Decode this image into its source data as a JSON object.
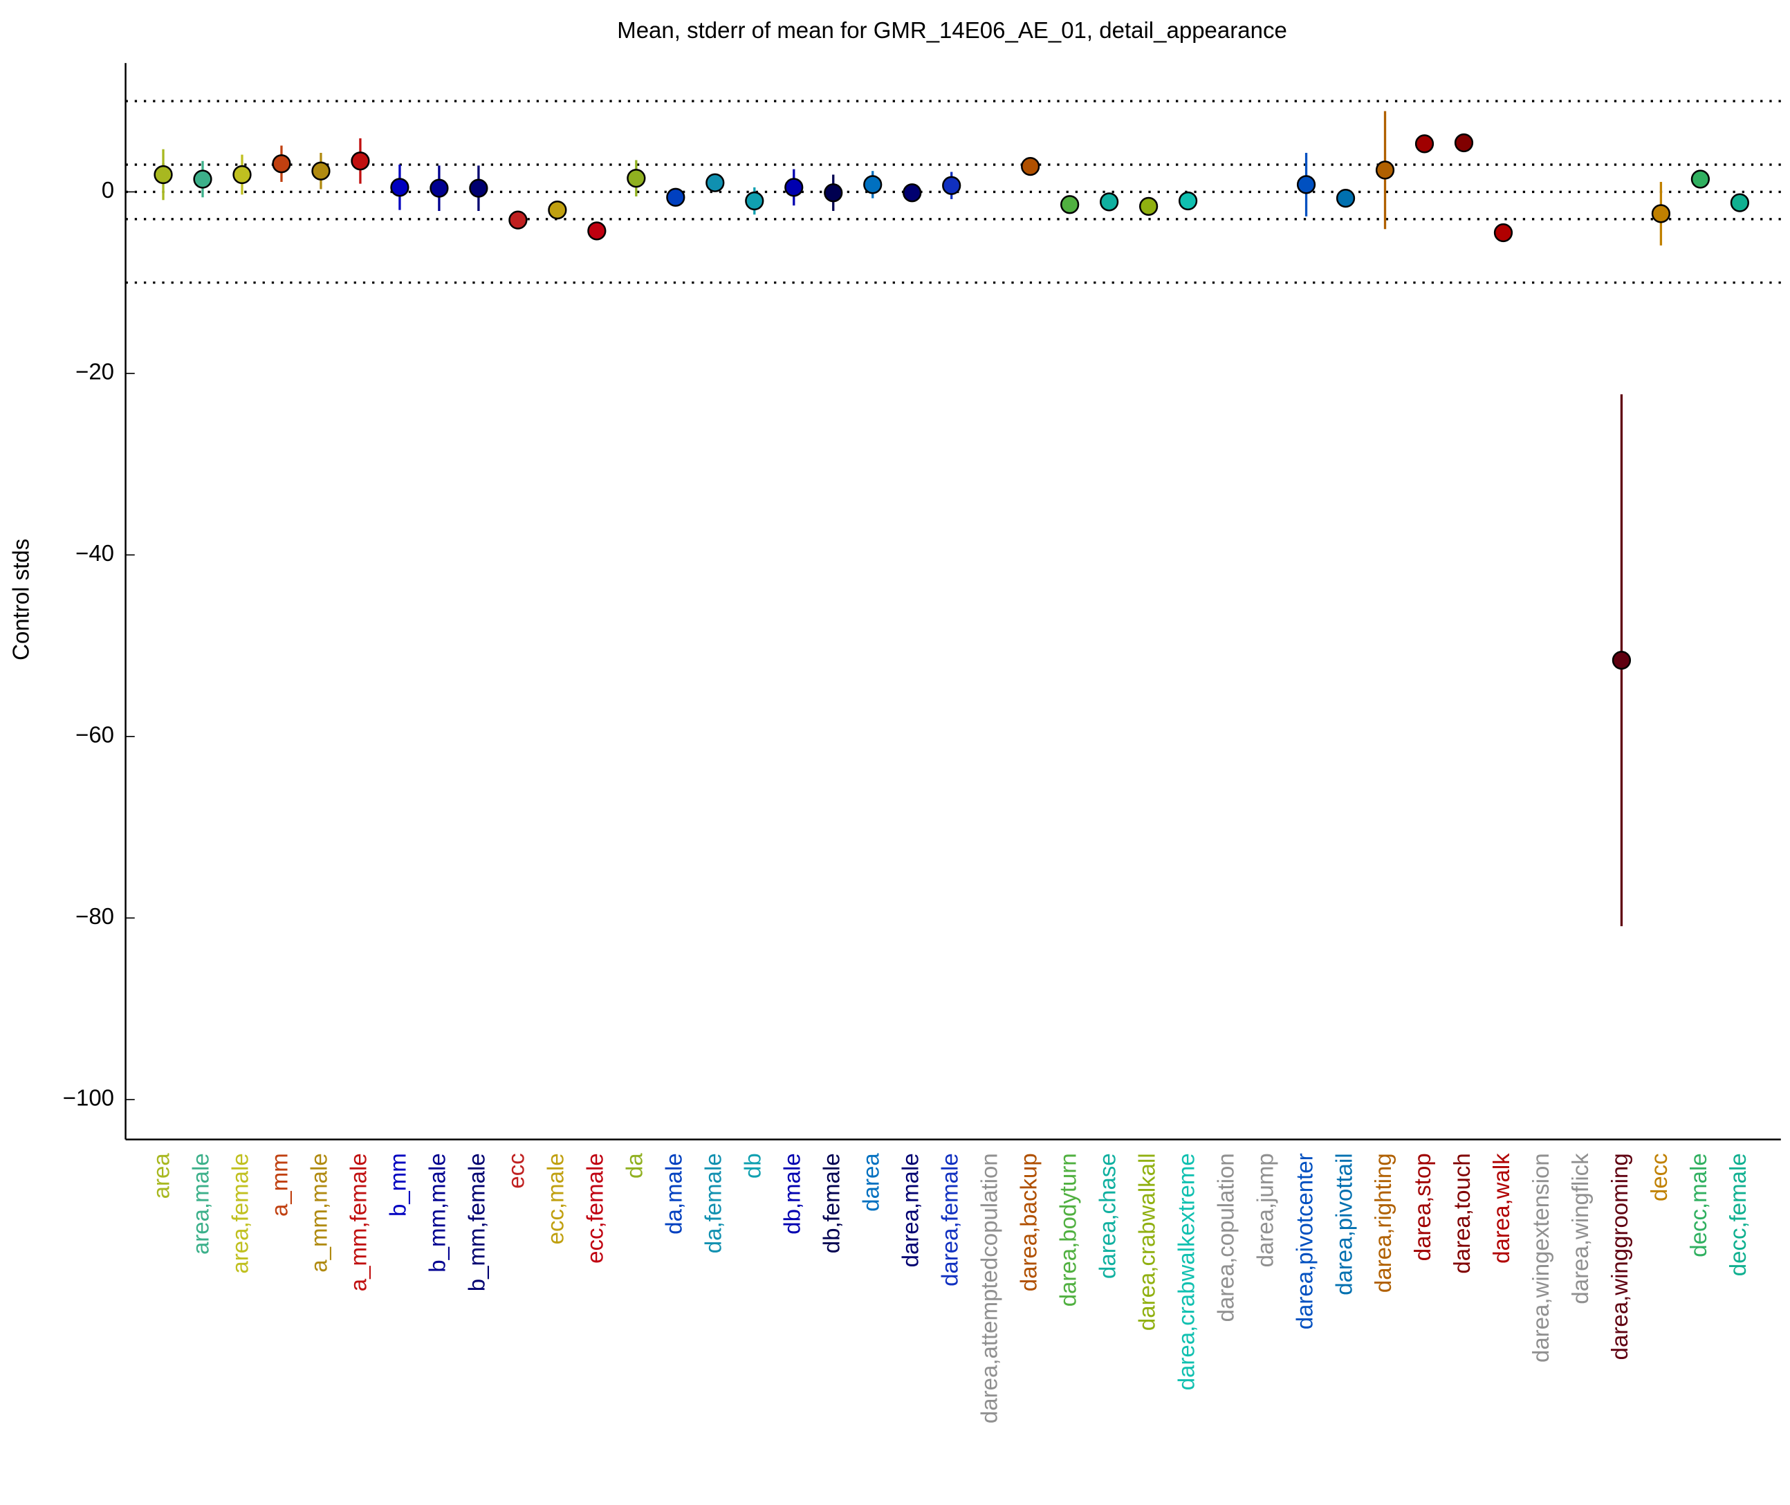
{
  "chart_data": {
    "type": "errorpoint",
    "title": "Mean, stderr of mean for GMR_14E06_AE_01, detail_appearance",
    "y_label": "Control stds",
    "categories": [
      "area",
      "area,male",
      "area,female",
      "a_mm",
      "a_mm,male",
      "a_mm,female",
      "b_mm",
      "b_mm,male",
      "b_mm,female",
      "ecc",
      "ecc,male",
      "ecc,female",
      "da",
      "da,male",
      "da,female",
      "db",
      "db,male",
      "db,female",
      "darea",
      "darea,male",
      "darea,female",
      "darea,attemptedcopulation",
      "darea,backup",
      "darea,bodyturn",
      "darea,chase",
      "darea,crabwalkall",
      "darea,crabwalkextreme",
      "darea,copulation",
      "darea,jump",
      "darea,pivotcenter",
      "darea,pivottail",
      "darea,righting",
      "darea,stop",
      "darea,touch",
      "darea,walk",
      "darea,wingextension",
      "darea,wingflick",
      "darea,winggrooming",
      "decc",
      "decc,male",
      "decc,female"
    ],
    "values": [
      1.9,
      1.4,
      1.9,
      3.1,
      2.3,
      3.4,
      0.5,
      0.4,
      0.4,
      -3.1,
      -2.0,
      -4.3,
      1.5,
      -0.6,
      1.0,
      -1.0,
      0.5,
      -0.1,
      0.8,
      -0.1,
      0.7,
      null,
      2.8,
      -1.4,
      -1.1,
      -1.6,
      -1.0,
      null,
      null,
      0.8,
      -0.7,
      2.4,
      5.3,
      5.4,
      -4.5,
      null,
      null,
      -51.6,
      -2.4,
      1.4,
      -1.2
    ],
    "errors": [
      2.8,
      2.0,
      2.2,
      2.0,
      2.0,
      2.5,
      2.5,
      2.5,
      2.5,
      1.0,
      1.0,
      1.0,
      2.0,
      0.6,
      0.5,
      1.5,
      2.0,
      2.0,
      1.5,
      1.0,
      1.5,
      null,
      0.3,
      0.5,
      1.0,
      0.5,
      0.5,
      null,
      null,
      3.5,
      0.3,
      6.5,
      0.5,
      0.5,
      0.5,
      null,
      null,
      29.3,
      3.5,
      0.5,
      0.5
    ],
    "colors": [
      "#a8b820",
      "#3cb08a",
      "#c0c020",
      "#c04010",
      "#b08a10",
      "#c01010",
      "#0000c0",
      "#000090",
      "#000070",
      "#c02020",
      "#c0a010",
      "#c00010",
      "#90b020",
      "#0040c0",
      "#1090b0",
      "#10a0b0",
      "#0000b0",
      "#000050",
      "#0070c0",
      "#000070",
      "#1030c0",
      "#909090",
      "#b05000",
      "#50b040",
      "#10b0a0",
      "#90b010",
      "#10c0b0",
      "#909090",
      "#909090",
      "#0050c0",
      "#0070b0",
      "#b06000",
      "#a00000",
      "#800000",
      "#b00000",
      "#909090",
      "#909090",
      "#600010",
      "#c08000",
      "#30b060",
      "#10b090"
    ],
    "reference_lines": [
      10,
      3,
      0,
      -3,
      -10
    ],
    "ylim": [
      -104.4,
      14.2
    ],
    "yticks": [
      {
        "value": -100,
        "label": "−100"
      },
      {
        "value": -80,
        "label": "−80"
      },
      {
        "value": -60,
        "label": "−60"
      },
      {
        "value": -40,
        "label": "−40"
      },
      {
        "value": -20,
        "label": "−20"
      },
      0
    ]
  }
}
